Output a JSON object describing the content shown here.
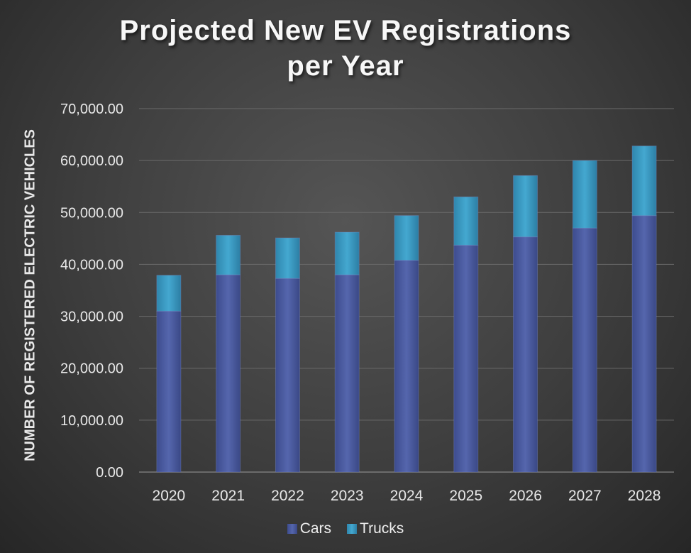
{
  "chart_data": {
    "type": "bar",
    "stacked": true,
    "title_line1": "Projected New EV Registrations",
    "title_line2": "per Year",
    "xlabel": "",
    "ylabel": "NUMBER OF REGISTERED ELECTRIC VEHICLES",
    "ylim": [
      0,
      70000
    ],
    "yticks": [
      "0.00",
      "10,000.00",
      "20,000.00",
      "30,000.00",
      "40,000.00",
      "50,000.00",
      "60,000.00",
      "70,000.00"
    ],
    "categories": [
      "2020",
      "2021",
      "2022",
      "2023",
      "2024",
      "2025",
      "2026",
      "2027",
      "2028"
    ],
    "series": [
      {
        "name": "Cars",
        "values": [
          31000,
          38000,
          37300,
          38000,
          40800,
          43700,
          45300,
          47000,
          49400
        ],
        "color": "#4a5aa0"
      },
      {
        "name": "Trucks",
        "values": [
          6900,
          7600,
          7800,
          8200,
          8600,
          9300,
          11800,
          13000,
          13400
        ],
        "color": "#3a9cc4"
      }
    ],
    "legend_position": "bottom"
  }
}
